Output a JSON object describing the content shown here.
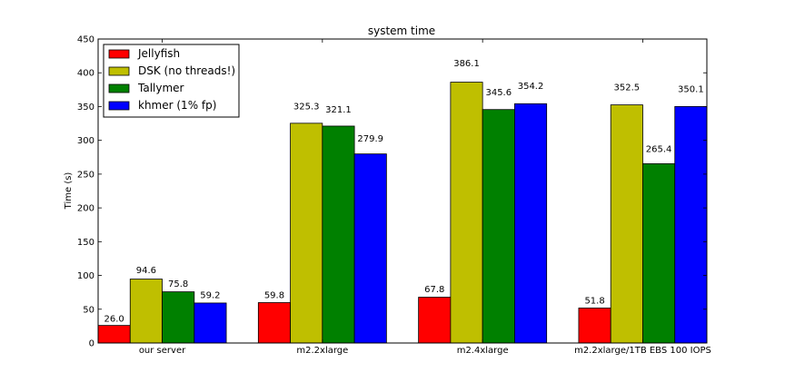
{
  "chart_data": {
    "type": "bar",
    "title": "system time",
    "xlabel": "",
    "ylabel": "Time (s)",
    "ylim": [
      0,
      450
    ],
    "yticks": [
      0,
      50,
      100,
      150,
      200,
      250,
      300,
      350,
      400,
      450
    ],
    "categories": [
      "our server",
      "m2.2xlarge",
      "m2.4xlarge",
      "m2.2xlarge/1TB EBS 100 IOPS"
    ],
    "series": [
      {
        "name": "Jellyfish",
        "color": "#ff0000",
        "values": [
          26.0,
          59.8,
          67.8,
          51.8
        ],
        "labels": [
          "26.0",
          "59.8",
          "67.8",
          "51.8"
        ]
      },
      {
        "name": "DSK (no threads!)",
        "color": "#bfbf00",
        "values": [
          94.6,
          325.3,
          386.1,
          352.5
        ],
        "labels": [
          "94.6",
          "325.3",
          "386.1",
          "352.5"
        ]
      },
      {
        "name": "Tallymer",
        "color": "#008000",
        "values": [
          75.8,
          321.1,
          345.6,
          265.4
        ],
        "labels": [
          "75.8",
          "321.1",
          "345.6",
          "265.4"
        ]
      },
      {
        "name": "khmer (1% fp)",
        "color": "#0000ff",
        "values": [
          59.2,
          279.9,
          354.2,
          350.1
        ],
        "labels": [
          "59.2",
          "279.9",
          "354.2",
          "350.1"
        ]
      }
    ],
    "legend_position": "top-left",
    "grid": false
  }
}
